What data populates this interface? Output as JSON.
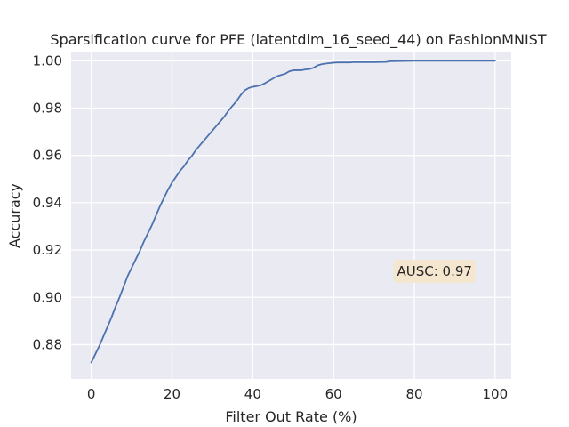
{
  "chart_data": {
    "type": "line",
    "title": "Sparsification curve for PFE (latentdim_16_seed_44) on FashionMNIST",
    "xlabel": "Filter Out Rate (%)",
    "ylabel": "Accuracy",
    "xlim": [
      -5,
      104
    ],
    "ylim": [
      0.8655,
      1.0035
    ],
    "xticks": [
      0,
      20,
      40,
      60,
      80,
      100
    ],
    "xtick_labels": [
      "0",
      "20",
      "40",
      "60",
      "80",
      "100"
    ],
    "yticks": [
      0.88,
      0.9,
      0.92,
      0.94,
      0.96,
      0.98,
      1.0
    ],
    "ytick_labels": [
      "0.88",
      "0.90",
      "0.92",
      "0.94",
      "0.96",
      "0.98",
      "1.00"
    ],
    "grid": true,
    "legend": "none",
    "annotation": {
      "text": "AUSC: 0.97",
      "x": 85,
      "y": 0.911
    },
    "colors": {
      "background": "#eaeaf2",
      "grid": "#ffffff",
      "line": "#4c72b0",
      "annotation_box": "#f5e6cc",
      "text": "#262626"
    },
    "series": [
      {
        "x": [
          0,
          1,
          2,
          3,
          4,
          5,
          6,
          7,
          8,
          9,
          10,
          11,
          12,
          13,
          14,
          15,
          16,
          17,
          18,
          19,
          20,
          21,
          22,
          23,
          24,
          25,
          26,
          27,
          28,
          29,
          30,
          31,
          32,
          33,
          34,
          35,
          36,
          37,
          38,
          39,
          40,
          41,
          42,
          43,
          44,
          45,
          46,
          47,
          48,
          49,
          50,
          51,
          52,
          53,
          54,
          55,
          56,
          57,
          58,
          59,
          60,
          61,
          62,
          63,
          64,
          65,
          70,
          73,
          74,
          80,
          90,
          100
        ],
        "values": [
          0.8725,
          0.876,
          0.8795,
          0.8835,
          0.8875,
          0.8915,
          0.896,
          0.9,
          0.9045,
          0.909,
          0.9125,
          0.916,
          0.9195,
          0.9235,
          0.927,
          0.9305,
          0.9345,
          0.9385,
          0.942,
          0.9455,
          0.9485,
          0.951,
          0.9535,
          0.9555,
          0.958,
          0.96,
          0.9625,
          0.9645,
          0.9665,
          0.9685,
          0.9705,
          0.9725,
          0.9745,
          0.9765,
          0.979,
          0.981,
          0.983,
          0.9855,
          0.9875,
          0.9885,
          0.989,
          0.9893,
          0.9897,
          0.9905,
          0.9915,
          0.9925,
          0.9935,
          0.994,
          0.9945,
          0.9955,
          0.996,
          0.996,
          0.996,
          0.9963,
          0.9965,
          0.997,
          0.998,
          0.9985,
          0.9988,
          0.999,
          0.9992,
          0.9993,
          0.9993,
          0.9993,
          0.9993,
          0.9994,
          0.9994,
          0.9995,
          0.9998,
          1.0,
          1.0,
          1.0
        ]
      }
    ]
  }
}
